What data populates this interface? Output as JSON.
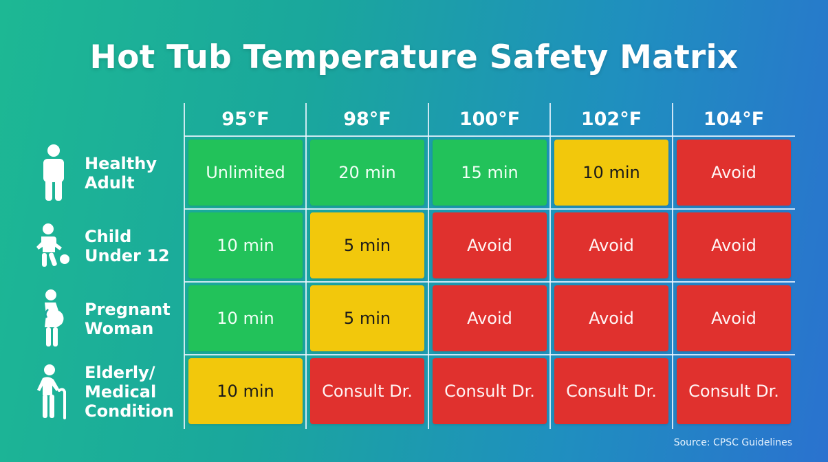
{
  "title": "Hot Tub Temperature Safety Matrix",
  "columns": [
    "95°F",
    "98°F",
    "100°F",
    "102°F",
    "104°F"
  ],
  "rows": [
    {
      "label_line1": "Healthy",
      "label_line2": "Adult",
      "label_line3": "",
      "icon": "adult-person-icon",
      "cells": [
        {
          "text": "Unlimited",
          "level": "green"
        },
        {
          "text": "20 min",
          "level": "green"
        },
        {
          "text": "15 min",
          "level": "green"
        },
        {
          "text": "10 min",
          "level": "yellow"
        },
        {
          "text": "Avoid",
          "level": "red"
        }
      ]
    },
    {
      "label_line1": "Child",
      "label_line2": "Under 12",
      "label_line3": "",
      "icon": "child-with-ball-icon",
      "cells": [
        {
          "text": "10 min",
          "level": "green"
        },
        {
          "text": "5 min",
          "level": "yellow"
        },
        {
          "text": "Avoid",
          "level": "red"
        },
        {
          "text": "Avoid",
          "level": "red"
        },
        {
          "text": "Avoid",
          "level": "red"
        }
      ]
    },
    {
      "label_line1": "Pregnant",
      "label_line2": "Woman",
      "label_line3": "",
      "icon": "pregnant-woman-icon",
      "cells": [
        {
          "text": "10 min",
          "level": "green"
        },
        {
          "text": "5 min",
          "level": "yellow"
        },
        {
          "text": "Avoid",
          "level": "red"
        },
        {
          "text": "Avoid",
          "level": "red"
        },
        {
          "text": "Avoid",
          "level": "red"
        }
      ]
    },
    {
      "label_line1": "Elderly/",
      "label_line2": "Medical",
      "label_line3": "Condition",
      "icon": "elderly-cane-icon",
      "cells": [
        {
          "text": "10 min",
          "level": "yellow"
        },
        {
          "text": "Consult Dr.",
          "level": "red"
        },
        {
          "text": "Consult Dr.",
          "level": "red"
        },
        {
          "text": "Consult Dr.",
          "level": "red"
        },
        {
          "text": "Consult Dr.",
          "level": "red"
        }
      ]
    }
  ],
  "source": "Source: CPSC Guidelines",
  "colors": {
    "green": "#22c25a",
    "yellow": "#f2c80c",
    "red": "#e0312e",
    "background_start": "#1db894",
    "background_end": "#2a72cf"
  }
}
